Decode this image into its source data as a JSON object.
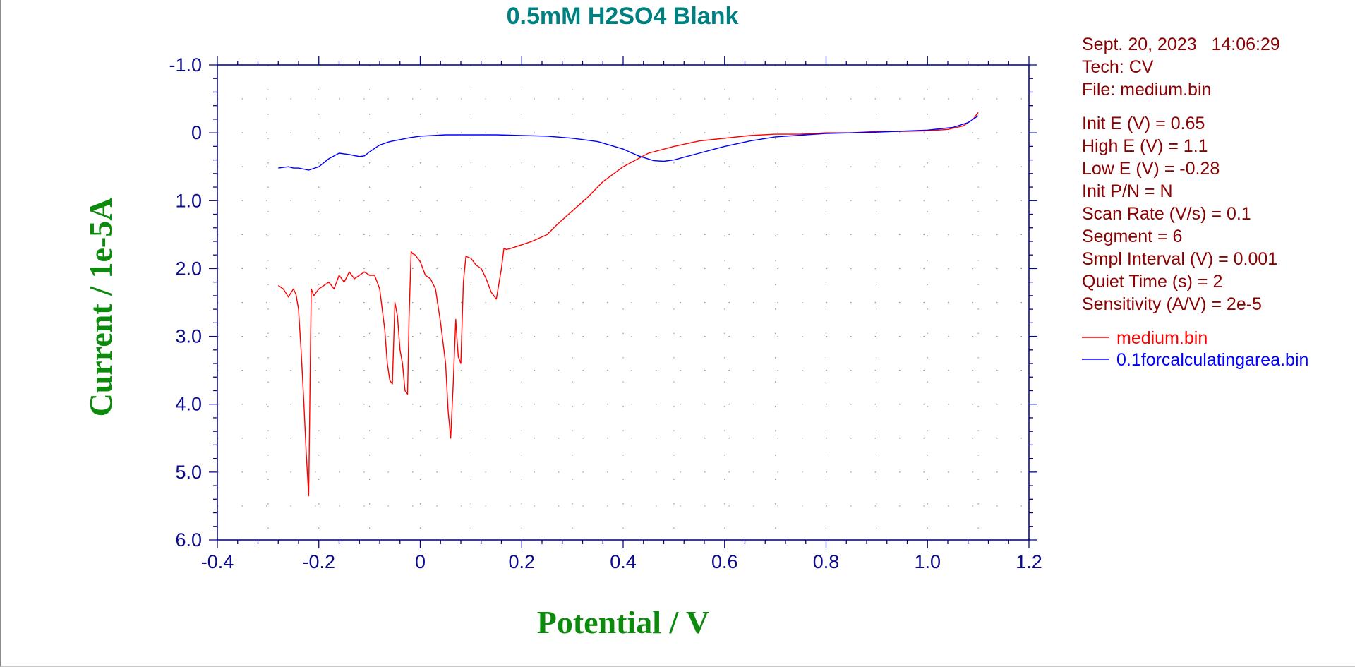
{
  "chart_data": {
    "type": "line",
    "title": "0.5mM H2SO4 Blank",
    "xlabel": "Potential / V",
    "ylabel": "Current / 1e-5A",
    "xlim": [
      -0.4,
      1.2
    ],
    "ylim": [
      -1.0,
      6.0
    ],
    "y_inverted": true,
    "grid": "dotted",
    "x_ticks": [
      -0.4,
      -0.2,
      0,
      0.2,
      0.4,
      0.6,
      0.8,
      1.0,
      1.2
    ],
    "x_tick_labels": [
      "-0.4",
      "-0.2",
      "0",
      "0.2",
      "0.4",
      "0.6",
      "0.8",
      "1.0",
      "1.2"
    ],
    "y_ticks": [
      -1.0,
      0,
      1.0,
      2.0,
      3.0,
      4.0,
      5.0,
      6.0
    ],
    "y_tick_labels": [
      "-1.0",
      "0",
      "1.0",
      "2.0",
      "3.0",
      "4.0",
      "5.0",
      "6.0"
    ],
    "legend_position": "right",
    "series": [
      {
        "name": "medium.bin",
        "color": "#ff0000",
        "x": [
          -0.28,
          -0.27,
          -0.26,
          -0.25,
          -0.245,
          -0.24,
          -0.235,
          -0.23,
          -0.225,
          -0.22,
          -0.215,
          -0.21,
          -0.205,
          -0.2,
          -0.19,
          -0.18,
          -0.17,
          -0.16,
          -0.15,
          -0.14,
          -0.13,
          -0.12,
          -0.11,
          -0.1,
          -0.09,
          -0.08,
          -0.07,
          -0.065,
          -0.06,
          -0.055,
          -0.05,
          -0.045,
          -0.04,
          -0.035,
          -0.03,
          -0.025,
          -0.022,
          -0.018,
          -0.015,
          -0.01,
          0.0,
          0.01,
          0.02,
          0.03,
          0.04,
          0.05,
          0.055,
          0.06,
          0.065,
          0.07,
          0.072,
          0.075,
          0.08,
          0.085,
          0.09,
          0.1,
          0.11,
          0.12,
          0.13,
          0.14,
          0.15,
          0.16,
          0.165,
          0.17,
          0.18,
          0.2,
          0.22,
          0.25,
          0.27,
          0.3,
          0.33,
          0.36,
          0.4,
          0.45,
          0.5,
          0.55,
          0.6,
          0.65,
          0.7,
          0.75,
          0.8,
          0.85,
          0.9,
          0.95,
          1.0,
          1.04,
          1.07,
          1.09,
          1.1
        ],
        "y": [
          2.25,
          2.3,
          2.42,
          2.3,
          2.38,
          2.6,
          3.2,
          3.9,
          4.7,
          5.35,
          2.3,
          2.4,
          2.35,
          2.3,
          2.25,
          2.2,
          2.3,
          2.1,
          2.2,
          2.05,
          2.15,
          2.1,
          2.05,
          2.1,
          2.1,
          2.3,
          2.9,
          3.4,
          3.65,
          3.7,
          2.5,
          2.7,
          3.2,
          3.4,
          3.8,
          3.85,
          2.7,
          1.75,
          1.78,
          1.8,
          1.9,
          2.1,
          2.15,
          2.3,
          2.8,
          3.4,
          4.1,
          4.5,
          3.7,
          2.75,
          3.0,
          3.3,
          3.4,
          2.2,
          1.82,
          1.85,
          1.95,
          2.0,
          2.15,
          2.35,
          2.45,
          2.0,
          1.7,
          1.72,
          1.7,
          1.65,
          1.6,
          1.5,
          1.35,
          1.15,
          0.95,
          0.72,
          0.5,
          0.3,
          0.2,
          0.12,
          0.08,
          0.04,
          0.02,
          0.02,
          0.0,
          0.0,
          -0.02,
          -0.02,
          -0.03,
          -0.05,
          -0.1,
          -0.2,
          -0.3
        ]
      },
      {
        "name": "0.1forcalculatingarea.bin",
        "color": "#0000ff",
        "x": [
          -0.28,
          -0.26,
          -0.25,
          -0.24,
          -0.22,
          -0.2,
          -0.18,
          -0.16,
          -0.14,
          -0.12,
          -0.11,
          -0.1,
          -0.08,
          -0.06,
          -0.04,
          -0.02,
          0.0,
          0.05,
          0.1,
          0.15,
          0.2,
          0.25,
          0.3,
          0.35,
          0.4,
          0.43,
          0.46,
          0.48,
          0.5,
          0.55,
          0.6,
          0.65,
          0.7,
          0.8,
          0.9,
          1.0,
          1.05,
          1.08,
          1.1
        ],
        "y": [
          0.52,
          0.5,
          0.52,
          0.52,
          0.55,
          0.5,
          0.38,
          0.3,
          0.32,
          0.35,
          0.34,
          0.28,
          0.18,
          0.13,
          0.1,
          0.07,
          0.05,
          0.03,
          0.03,
          0.03,
          0.04,
          0.05,
          0.08,
          0.13,
          0.24,
          0.34,
          0.41,
          0.42,
          0.4,
          0.3,
          0.2,
          0.12,
          0.06,
          0.01,
          -0.01,
          -0.04,
          -0.08,
          -0.15,
          -0.25
        ]
      }
    ]
  },
  "info_panel": {
    "date_line": "Sept. 20, 2023   14:06:29",
    "tech": "Tech: CV",
    "file": "File: medium.bin",
    "params": [
      "Init E (V) = 0.65",
      "High E (V) = 1.1",
      "Low E (V) = -0.28",
      "Init P/N = N",
      "Scan Rate (V/s) = 0.1",
      "Segment = 6",
      "Smpl Interval (V) = 0.001",
      "Quiet Time (s) = 2",
      "Sensitivity (A/V) = 2e-5"
    ]
  },
  "colors": {
    "title": "#008080",
    "axis_title": "#0b8a0b",
    "axis": "#0a0a8c",
    "info_text": "#8b0000",
    "grid": "#9a9a9a"
  }
}
